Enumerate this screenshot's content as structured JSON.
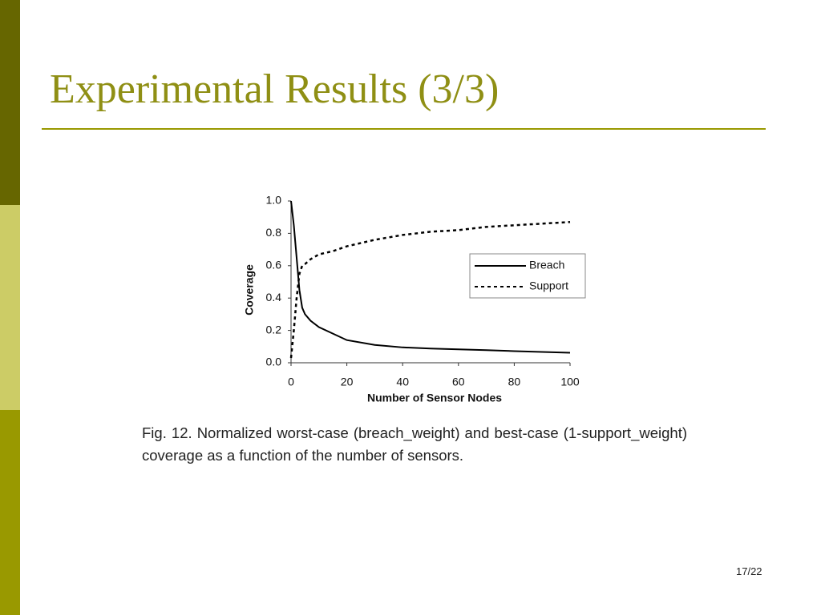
{
  "slide": {
    "title": "Experimental Results (3/3)",
    "caption": "Fig. 12. Normalized worst-case (breach_weight) and best-case (1-support_weight) coverage as a function of the number of sensors.",
    "page": "17/22"
  },
  "chart_data": {
    "type": "line",
    "x_label": "Number of Sensor Nodes",
    "y_label": "Coverage",
    "x": [
      0,
      1,
      2,
      3,
      4,
      5,
      7,
      10,
      15,
      20,
      30,
      40,
      50,
      60,
      70,
      80,
      90,
      100
    ],
    "series": [
      {
        "name": "Breach",
        "color": "#000000",
        "dash": false,
        "values": [
          1.0,
          0.85,
          0.65,
          0.45,
          0.34,
          0.3,
          0.26,
          0.22,
          0.18,
          0.14,
          0.11,
          0.095,
          0.088,
          0.083,
          0.078,
          0.072,
          0.067,
          0.062
        ]
      },
      {
        "name": "Support",
        "color": "#000000",
        "dash": true,
        "values": [
          0.03,
          0.2,
          0.4,
          0.55,
          0.6,
          0.61,
          0.64,
          0.67,
          0.69,
          0.72,
          0.76,
          0.79,
          0.81,
          0.82,
          0.84,
          0.85,
          0.86,
          0.87
        ]
      }
    ],
    "xlim": [
      0,
      100
    ],
    "xticks": [
      0,
      20,
      40,
      60,
      80,
      100
    ],
    "ylim": [
      0,
      1
    ],
    "yticks": [
      {
        "value": 0,
        "label": "0.0"
      },
      0.2,
      0.4,
      0.6,
      0.8,
      {
        "value": 1,
        "label": "1.0"
      }
    ],
    "legend": "right"
  }
}
